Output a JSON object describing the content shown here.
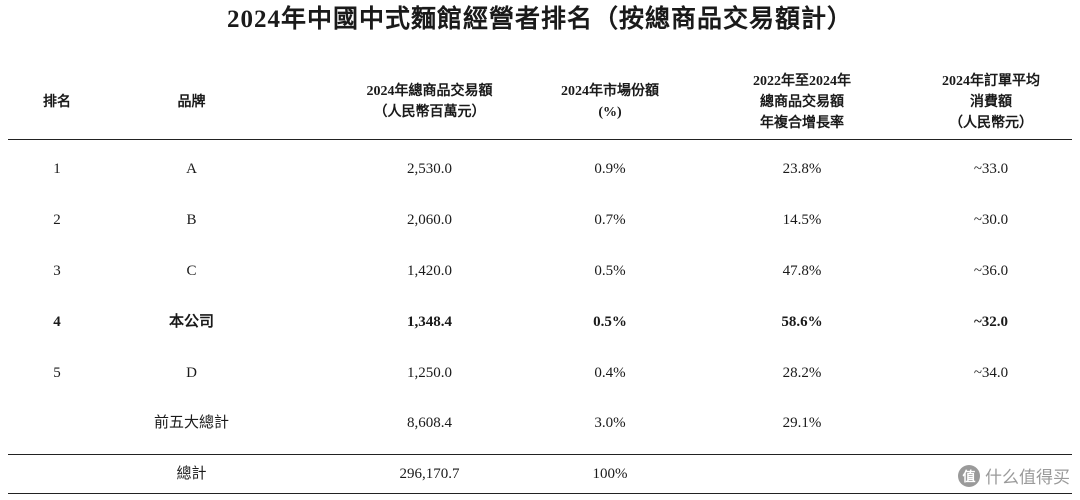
{
  "title": "2024年中國中式麵館經營者排名（按總商品交易額計）",
  "headers": {
    "rank": [
      "排名"
    ],
    "brand": [
      "品牌"
    ],
    "gmv": [
      "2024年總商品交易額",
      "（人民幣百萬元）"
    ],
    "share": [
      "2024年市場份額",
      "(%)"
    ],
    "cagr": [
      "2022年至2024年",
      "總商品交易額",
      "年複合增長率"
    ],
    "aov": [
      "2024年訂單平均",
      "消費額",
      "（人民幣元）"
    ]
  },
  "rows": [
    {
      "rank": "1",
      "brand": "A",
      "gmv": "2,530.0",
      "share": "0.9%",
      "cagr": "23.8%",
      "aov": "~33.0",
      "bold": false
    },
    {
      "rank": "2",
      "brand": "B",
      "gmv": "2,060.0",
      "share": "0.7%",
      "cagr": "14.5%",
      "aov": "~30.0",
      "bold": false
    },
    {
      "rank": "3",
      "brand": "C",
      "gmv": "1,420.0",
      "share": "0.5%",
      "cagr": "47.8%",
      "aov": "~36.0",
      "bold": false
    },
    {
      "rank": "4",
      "brand": "本公司",
      "gmv": "1,348.4",
      "share": "0.5%",
      "cagr": "58.6%",
      "aov": "~32.0",
      "bold": true
    },
    {
      "rank": "5",
      "brand": "D",
      "gmv": "1,250.0",
      "share": "0.4%",
      "cagr": "28.2%",
      "aov": "~34.0",
      "bold": false
    },
    {
      "rank": "",
      "brand": "前五大總計",
      "gmv": "8,608.4",
      "share": "3.0%",
      "cagr": "29.1%",
      "aov": "",
      "bold": false
    }
  ],
  "total": {
    "brand": "總計",
    "gmv": "296,170.7",
    "share": "100%"
  },
  "watermark": {
    "logo": "值",
    "text": "什么值得买"
  }
}
